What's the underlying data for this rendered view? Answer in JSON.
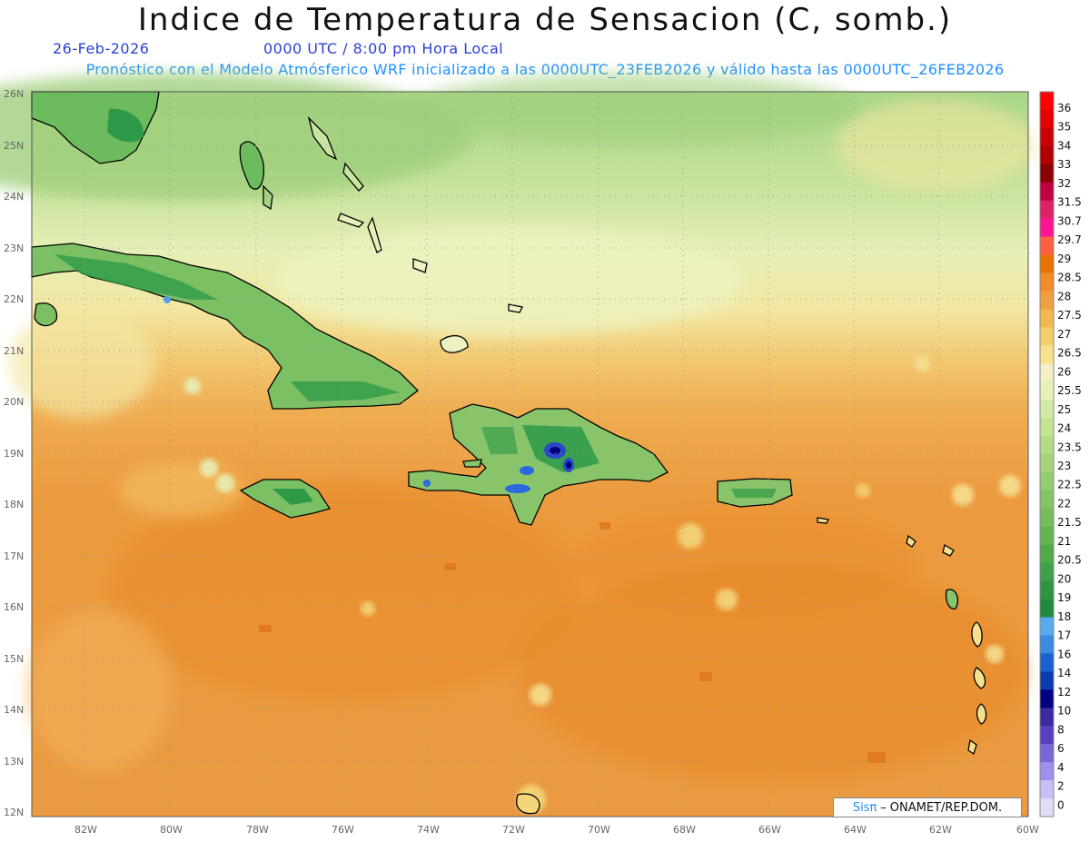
{
  "title": "Indice de Temperatura de Sensacion (C, somb.)",
  "date": "26-Feb-2026",
  "time": "0000 UTC / 8:00 pm Hora Local",
  "forecast": "Pronóstico con el Modelo Atmósferico WRF inicializado a las 0000UTC_23FEB2026 y válido hasta las  0000UTC_26FEB2026",
  "credit": {
    "brand": "Sisπ",
    "sep": "–",
    "org": "ONAMET/REP.DOM."
  },
  "lat_labels": [
    "26N",
    "25N",
    "24N",
    "23N",
    "22N",
    "21N",
    "20N",
    "19N",
    "18N",
    "17N",
    "16N",
    "15N",
    "14N",
    "13N",
    "12N"
  ],
  "lon_labels": [
    "82W",
    "80W",
    "78W",
    "76W",
    "74W",
    "72W",
    "70W",
    "68W",
    "66W",
    "64W",
    "62W",
    "60W"
  ],
  "colorbar": {
    "labels": [
      "36",
      "35",
      "34",
      "33",
      "32",
      "31.5",
      "30.7",
      "29.7",
      "29",
      "28.5",
      "28",
      "27.5",
      "27",
      "26.5",
      "26",
      "25.5",
      "25",
      "24",
      "23.5",
      "23",
      "22.5",
      "22",
      "21.5",
      "21",
      "20.5",
      "20",
      "19",
      "18",
      "17",
      "16",
      "14",
      "12",
      "10",
      "8",
      "6",
      "4",
      "2",
      "0"
    ],
    "colors": [
      "#ff0000",
      "#e60000",
      "#cc0000",
      "#b30000",
      "#8b0000",
      "#c00040",
      "#e0206a",
      "#ff1493",
      "#ff6040",
      "#e67300",
      "#f08c2a",
      "#f0a040",
      "#f2b850",
      "#f5cf6a",
      "#f8e08c",
      "#f5efc8",
      "#e6f0b8",
      "#d4eaa4",
      "#c4e494",
      "#b4dc86",
      "#a4d47a",
      "#94cc70",
      "#84c466",
      "#74bc5c",
      "#64b452",
      "#50aa4a",
      "#3ea048",
      "#2e9444",
      "#1f8a40",
      "#5aaaf0",
      "#3a8ae0",
      "#1a60d0",
      "#0a3cb0",
      "#000080",
      "#3a2aa0",
      "#5a40c0",
      "#7a66d8",
      "#a090ec",
      "#c8c0f4",
      "#e0dcf8"
    ]
  },
  "legend_colors": {
    "land_cold": "#1f8a40",
    "land_mid": "#84c466",
    "ocean_warm": "#ec9236",
    "ocean_mid": "#f2b850",
    "ocean_cool": "#cfe6a4",
    "mountain": "#2a48c8"
  }
}
